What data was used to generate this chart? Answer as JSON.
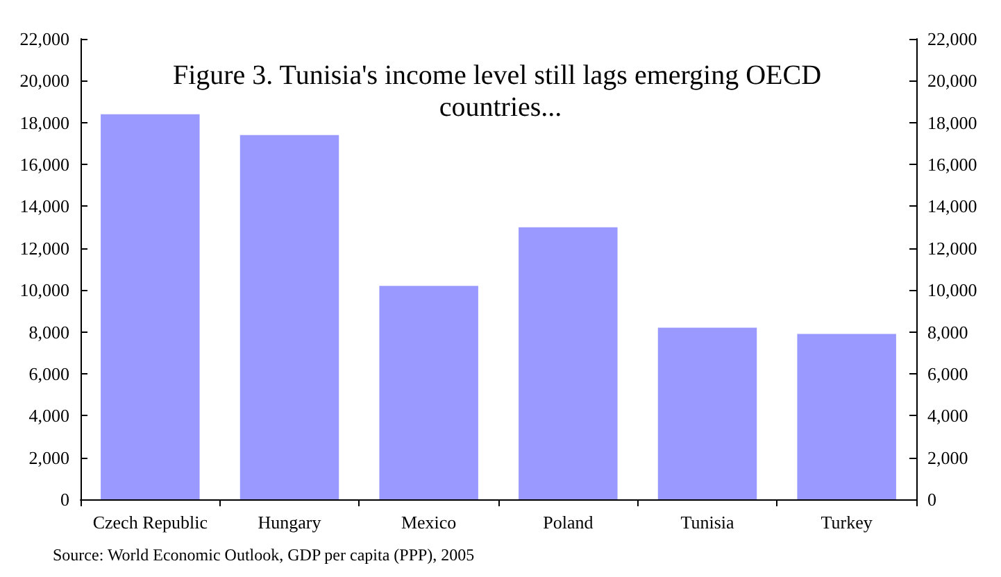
{
  "chart_data": {
    "type": "bar",
    "title": "Figure 3. Tunisia's income level still lags emerging OECD countries...",
    "categories": [
      "Czech Republic",
      "Hungary",
      "Mexico",
      "Poland",
      "Tunisia",
      "Turkey"
    ],
    "values": [
      18400,
      17400,
      10200,
      13000,
      8200,
      7900
    ],
    "color": "#9999ff",
    "ylim": [
      0,
      22000
    ],
    "yticks": [
      0,
      {
        "value": 2000,
        "label": "2,000"
      },
      {
        "value": 4000,
        "label": "4,000"
      },
      {
        "value": 6000,
        "label": "6,000"
      },
      {
        "value": 8000,
        "label": "8,000"
      },
      {
        "value": 10000,
        "label": "10,000"
      },
      {
        "value": 12000,
        "label": "12,000"
      },
      {
        "value": 14000,
        "label": "14,000"
      },
      {
        "value": 16000,
        "label": "16,000"
      },
      {
        "value": 18000,
        "label": "18,000"
      },
      {
        "value": 20000,
        "label": "20,000"
      },
      {
        "value": 22000,
        "label": "22,000"
      }
    ],
    "y2lim": [
      0,
      22000
    ],
    "y2ticks": [
      0,
      {
        "value": 2000,
        "label": "2,000"
      },
      {
        "value": 4000,
        "label": "4,000"
      },
      {
        "value": 6000,
        "label": "6,000"
      },
      {
        "value": 8000,
        "label": "8,000"
      },
      {
        "value": 10000,
        "label": "10,000"
      },
      {
        "value": 12000,
        "label": "12,000"
      },
      {
        "value": 14000,
        "label": "14,000"
      },
      {
        "value": 16000,
        "label": "16,000"
      },
      {
        "value": 18000,
        "label": "18,000"
      },
      {
        "value": 20000,
        "label": "20,000"
      },
      {
        "value": 22000,
        "label": "22,000"
      }
    ],
    "grid": false,
    "annotations": [
      "Source: World Economic Outlook, GDP per capita (PPP), 2005"
    ]
  }
}
